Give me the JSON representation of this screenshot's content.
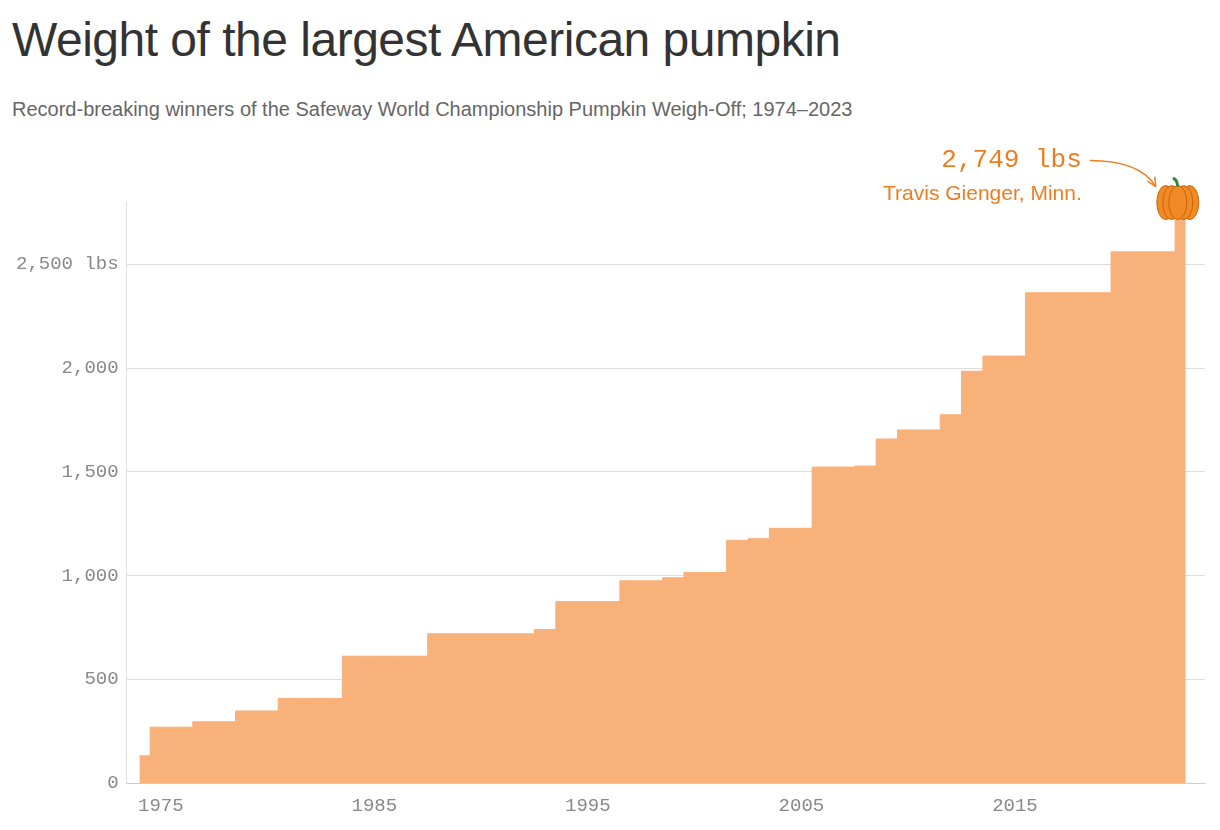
{
  "chart_data": {
    "type": "area",
    "title": "Weight of the largest American pumpkin",
    "subtitle": "Record-breaking winners of the Safeway World Championship Pumpkin Weigh-Off; 1974–2023",
    "line_style": "step",
    "color": "#f9b17a",
    "x": [
      1974,
      1975,
      1976,
      1977,
      1978,
      1979,
      1980,
      1981,
      1982,
      1983,
      1984,
      1985,
      1986,
      1987,
      1988,
      1989,
      1990,
      1991,
      1992,
      1993,
      1994,
      1995,
      1996,
      1997,
      1998,
      1999,
      2000,
      2001,
      2002,
      2003,
      2004,
      2005,
      2006,
      2007,
      2008,
      2009,
      2010,
      2011,
      2012,
      2013,
      2014,
      2015,
      2016,
      2017,
      2018,
      2019,
      2020,
      2021,
      2022,
      2023
    ],
    "values": [
      132,
      270,
      270,
      296,
      296,
      348,
      348,
      408,
      408,
      408,
      612,
      612,
      612,
      612,
      720,
      720,
      720,
      720,
      720,
      740,
      875,
      875,
      875,
      975,
      975,
      990,
      1015,
      1015,
      1170,
      1178,
      1228,
      1228,
      1523,
      1523,
      1528,
      1658,
      1702,
      1702,
      1775,
      1985,
      2058,
      2058,
      2363,
      2363,
      2363,
      2363,
      2560,
      2560,
      2560,
      2749
    ],
    "xlim": [
      1973.4,
      2023.9
    ],
    "xticks": [
      1975,
      1985,
      1995,
      2005,
      2015
    ],
    "ylim": [
      0,
      2800
    ],
    "yticks": [
      0,
      500,
      {
        "value": 1000,
        "label": "1,000"
      },
      {
        "value": 1500,
        "label": "1,500"
      },
      {
        "value": 2000,
        "label": "2,000"
      },
      {
        "value": 2500,
        "label": "2,500 lbs"
      }
    ],
    "grid": true,
    "annotations": [
      {
        "x": 2023,
        "y": 2749,
        "label": "2,749 lbs",
        "note": "Travis Gienger, Minn."
      }
    ]
  }
}
